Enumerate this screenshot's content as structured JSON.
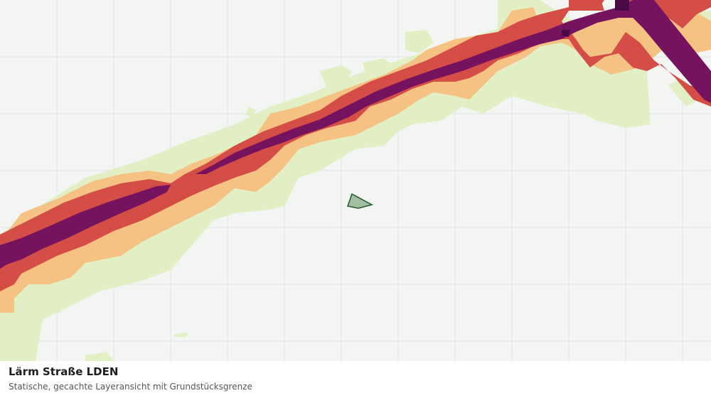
{
  "layer": {
    "title": "Lärm Straße LDEN",
    "subtitle": "Statische, gecachte Layeransicht mit Grundstücksgrenze"
  },
  "colors": {
    "background": "#f3f5f3",
    "grid": "#dfe3e0",
    "noise_band_1": "#e2efc4",
    "noise_band_2": "#f5c283",
    "noise_band_3": "#d44d46",
    "noise_band_4": "#75135e",
    "noise_band_5": "#4a0a45",
    "parcel_fill": "#a3c1a2",
    "parcel_stroke": "#1f5a33"
  }
}
